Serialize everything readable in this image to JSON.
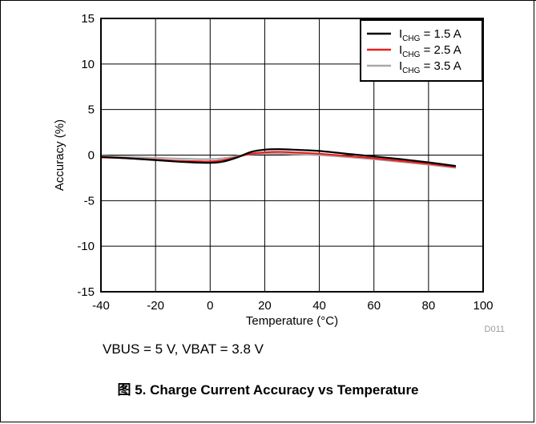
{
  "note": "VBUS = 5 V, VBAT = 3.8 V",
  "caption": "图 5. Charge Current Accuracy vs Temperature",
  "figure_code": "D011",
  "chart_data": {
    "type": "line",
    "xlabel": "Temperature (°C)",
    "ylabel": "Accuracy (%)",
    "xlim": [
      -40,
      100
    ],
    "ylim": [
      -15,
      15
    ],
    "xticks": [
      -40,
      -20,
      0,
      20,
      40,
      60,
      80,
      100
    ],
    "yticks": [
      15,
      10,
      5,
      0,
      -5,
      -10,
      -15
    ],
    "grid": true,
    "legend_position": "top-right",
    "series": [
      {
        "name_main": "I",
        "name_sub": "CHG",
        "name_rest": " = 1.5 A",
        "color": "#000000",
        "x": [
          -40,
          -30,
          -20,
          -10,
          0,
          5,
          10,
          15,
          20,
          25,
          30,
          40,
          50,
          60,
          70,
          80,
          90
        ],
        "y": [
          -0.2,
          -0.35,
          -0.55,
          -0.75,
          -0.85,
          -0.7,
          -0.25,
          0.35,
          0.6,
          0.65,
          0.6,
          0.45,
          0.15,
          -0.15,
          -0.45,
          -0.8,
          -1.2
        ]
      },
      {
        "name_main": "I",
        "name_sub": "CHG",
        "name_rest": " = 2.5 A",
        "color": "#e8201f",
        "x": [
          -40,
          -30,
          -20,
          -10,
          0,
          5,
          10,
          15,
          20,
          25,
          30,
          40,
          50,
          60,
          70,
          80,
          90
        ],
        "y": [
          -0.25,
          -0.35,
          -0.5,
          -0.65,
          -0.7,
          -0.55,
          -0.2,
          0.15,
          0.3,
          0.35,
          0.3,
          0.15,
          -0.1,
          -0.35,
          -0.65,
          -0.95,
          -1.3
        ]
      },
      {
        "name_main": "I",
        "name_sub": "CHG",
        "name_rest": " = 3.5 A",
        "color": "#a9a9a9",
        "x": [
          -40,
          -30,
          -20,
          -10,
          0,
          5,
          10,
          15,
          20,
          25,
          30,
          40,
          50,
          60,
          70,
          80,
          90
        ],
        "y": [
          -0.1,
          -0.2,
          -0.3,
          -0.4,
          -0.45,
          -0.35,
          -0.1,
          0.1,
          0.15,
          0.15,
          0.1,
          0.0,
          -0.2,
          -0.45,
          -0.75,
          -1.05,
          -1.4
        ]
      }
    ]
  }
}
